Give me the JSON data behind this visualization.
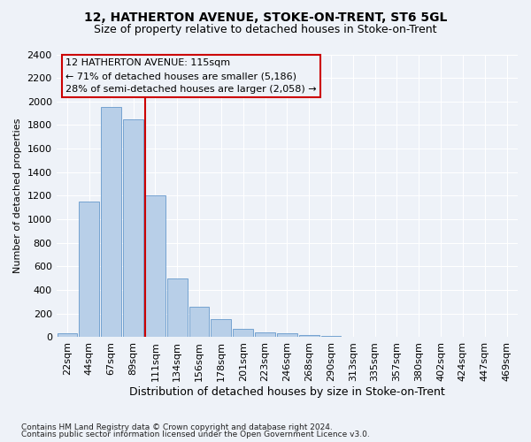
{
  "title": "12, HATHERTON AVENUE, STOKE-ON-TRENT, ST6 5GL",
  "subtitle": "Size of property relative to detached houses in Stoke-on-Trent",
  "xlabel": "Distribution of detached houses by size in Stoke-on-Trent",
  "ylabel": "Number of detached properties",
  "categories": [
    "22sqm",
    "44sqm",
    "67sqm",
    "89sqm",
    "111sqm",
    "134sqm",
    "156sqm",
    "178sqm",
    "201sqm",
    "223sqm",
    "246sqm",
    "268sqm",
    "290sqm",
    "313sqm",
    "335sqm",
    "357sqm",
    "380sqm",
    "402sqm",
    "424sqm",
    "447sqm",
    "469sqm"
  ],
  "values": [
    30,
    1150,
    1950,
    1850,
    1200,
    500,
    260,
    150,
    70,
    40,
    30,
    15,
    10,
    5,
    5,
    2,
    2,
    1,
    1,
    1,
    1
  ],
  "bar_color": "#b8cfe8",
  "bar_edge_color": "#6699cc",
  "marker_index": 4,
  "marker_line_color": "#cc0000",
  "annotation_line1": "12 HATHERTON AVENUE: 115sqm",
  "annotation_line2": "← 71% of detached houses are smaller (5,186)",
  "annotation_line3": "28% of semi-detached houses are larger (2,058) →",
  "annotation_box_color": "#cc0000",
  "ylim": [
    0,
    2400
  ],
  "yticks": [
    0,
    200,
    400,
    600,
    800,
    1000,
    1200,
    1400,
    1600,
    1800,
    2000,
    2200,
    2400
  ],
  "footnote1": "Contains HM Land Registry data © Crown copyright and database right 2024.",
  "footnote2": "Contains public sector information licensed under the Open Government Licence v3.0.",
  "background_color": "#eef2f8",
  "grid_color": "#ffffff",
  "title_fontsize": 10,
  "subtitle_fontsize": 9,
  "xlabel_fontsize": 9,
  "ylabel_fontsize": 8,
  "tick_fontsize": 8,
  "annot_fontsize": 8
}
